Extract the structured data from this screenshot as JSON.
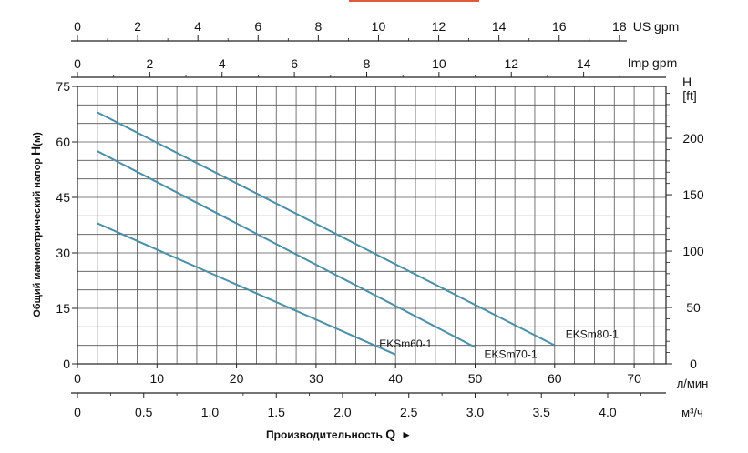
{
  "chart_data": {
    "type": "line",
    "x_unit": "л/мин",
    "x_ticks": [
      0,
      10,
      20,
      30,
      40,
      50,
      60,
      70
    ],
    "xlim": [
      0,
      74
    ],
    "y_ticks": [
      0,
      15,
      30,
      45,
      60,
      75
    ],
    "ylim": [
      0,
      75
    ],
    "ylabel_prefix": "Общий манометрический напор ",
    "ylabel_bold": "H",
    "ylabel_unit": "(м)",
    "xlabel_prefix": "Производительность ",
    "xlabel_bold": "Q",
    "xlabel_arrow": "►",
    "right_axis": {
      "title": "H",
      "unit": "[ft]",
      "ticks": [
        0,
        50,
        100,
        150,
        200
      ]
    },
    "top_axis_us": {
      "unit": "US gpm",
      "ticks": [
        0,
        2,
        4,
        6,
        8,
        10,
        12,
        14,
        16,
        18
      ]
    },
    "top_axis_imp": {
      "unit": "Imp gpm",
      "ticks": [
        0,
        2,
        4,
        6,
        8,
        10,
        12,
        14
      ]
    },
    "bottom_axis_m3h": {
      "unit": "м³/ч",
      "ticks": [
        "0",
        "0.5",
        "1.0",
        "1.5",
        "2.0",
        "2.5",
        "3.0",
        "3.5",
        "4.0"
      ]
    },
    "grid": true,
    "line_color": "#4a8fa8",
    "series": [
      {
        "name": "EKSm60-1",
        "x": [
          2.5,
          40
        ],
        "y": [
          38,
          2.5
        ]
      },
      {
        "name": "EKSm70-1",
        "x": [
          2.5,
          50
        ],
        "y": [
          57.5,
          4.5
        ]
      },
      {
        "name": "EKSm80-1",
        "x": [
          2.5,
          60
        ],
        "y": [
          68,
          5
        ]
      }
    ]
  }
}
